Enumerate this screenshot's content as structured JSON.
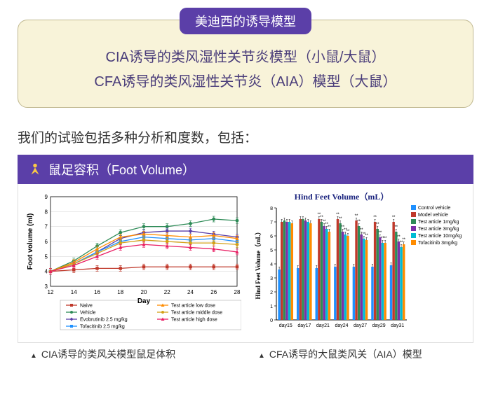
{
  "header": {
    "tag": "美迪西的诱导模型",
    "lines": [
      "CIA诱导的类风湿性关节炎模型（小鼠/大鼠）",
      "CFA诱导的类风湿性关节炎（AIA）模型（大鼠）"
    ]
  },
  "intro": "我们的试验包括多种分析和度数，包括：",
  "section_title": "鼠足容积（Foot Volume）",
  "captions": [
    "CIA诱导的类风关模型鼠足体积",
    "CFA诱导的大鼠类风关（AIA）模型"
  ],
  "chart1": {
    "type": "line",
    "x_days": [
      12,
      14,
      16,
      18,
      20,
      22,
      24,
      26,
      28
    ],
    "ylim": [
      3,
      9
    ],
    "ytick_step": 1,
    "xlabel": "Day",
    "ylabel": "Foot volume (ml)",
    "xlabel_fontsize": 10,
    "ylabel_fontsize": 10,
    "tick_fontsize": 8,
    "legend_fontsize": 7,
    "background_color": "#ffffff",
    "grid_color": "#d0d0d0",
    "series": [
      {
        "name": "Naive",
        "color": "#c0392b",
        "marker": "square",
        "values": [
          4.0,
          4.1,
          4.2,
          4.2,
          4.3,
          4.3,
          4.3,
          4.3,
          4.3
        ]
      },
      {
        "name": "Vehicle",
        "color": "#2e8b57",
        "marker": "circle",
        "values": [
          4.0,
          4.7,
          5.7,
          6.6,
          7.0,
          7.0,
          7.2,
          7.5,
          7.4
        ]
      },
      {
        "name": "Evobrutinib 2.5 mg/kg",
        "color": "#5b3fa8",
        "marker": "diamond",
        "values": [
          4.0,
          4.5,
          5.3,
          6.2,
          6.6,
          6.7,
          6.7,
          6.5,
          6.3
        ]
      },
      {
        "name": "Tofacitinib 2.5 mg/kg",
        "color": "#1e90ff",
        "marker": "square",
        "values": [
          4.0,
          4.5,
          5.3,
          6.0,
          6.3,
          6.2,
          6.1,
          6.2,
          6.0
        ]
      },
      {
        "name": "Test article low dose",
        "color": "#ff8c00",
        "marker": "triangle",
        "values": [
          4.0,
          4.6,
          5.5,
          6.3,
          6.5,
          6.4,
          6.3,
          6.4,
          6.2
        ]
      },
      {
        "name": "Test article middle dose",
        "color": "#d4a017",
        "marker": "circle",
        "values": [
          4.0,
          4.5,
          5.2,
          5.9,
          6.1,
          6.0,
          5.9,
          5.9,
          5.8
        ]
      },
      {
        "name": "Test article high dose",
        "color": "#e91e63",
        "marker": "triangle",
        "values": [
          4.0,
          4.4,
          5.0,
          5.6,
          5.8,
          5.7,
          5.6,
          5.5,
          5.3
        ]
      }
    ]
  },
  "chart2": {
    "type": "bar",
    "title": "Hind Feet Volume（mL）",
    "title_fontsize": 12,
    "title_color": "#1a237e",
    "ylabel": "Hind Feet Volume（mL）",
    "ylabel_fontsize": 9,
    "tick_fontsize": 7,
    "legend_fontsize": 7,
    "ylim": [
      0,
      8
    ],
    "ytick_step": 1,
    "days": [
      "day15",
      "day17",
      "day21",
      "day24",
      "day27",
      "day29",
      "day31"
    ],
    "legend": [
      {
        "name": "Control vehicle",
        "color": "#1e90ff"
      },
      {
        "name": "Model vehicle",
        "color": "#c0392b"
      },
      {
        "name": "Test article 1mg/kg",
        "color": "#2e8b57"
      },
      {
        "name": "Test article 3mg/kg",
        "color": "#7b2fa8"
      },
      {
        "name": "Test article 10mg/kg",
        "color": "#00bcd4"
      },
      {
        "name": "Tofacitinib 3mg/kg",
        "color": "#ff8c00"
      }
    ],
    "series": [
      {
        "color": "#1e90ff",
        "values": [
          3.6,
          3.7,
          3.7,
          3.8,
          3.8,
          3.8,
          3.9
        ]
      },
      {
        "color": "#c0392b",
        "values": [
          7.0,
          7.2,
          7.2,
          7.2,
          7.1,
          7.0,
          7.0
        ]
      },
      {
        "color": "#2e8b57",
        "values": [
          7.1,
          7.2,
          7.0,
          6.9,
          6.7,
          6.5,
          6.3
        ]
      },
      {
        "color": "#7b2fa8",
        "values": [
          7.0,
          7.1,
          6.7,
          6.3,
          6.1,
          5.9,
          5.6
        ]
      },
      {
        "color": "#00bcd4",
        "values": [
          7.0,
          7.0,
          6.5,
          6.1,
          5.8,
          5.5,
          5.2
        ]
      },
      {
        "color": "#ff8c00",
        "values": [
          6.9,
          6.9,
          6.3,
          6.0,
          5.7,
          5.5,
          5.4
        ]
      }
    ],
    "background_color": "#ffffff",
    "grid_color": "#888888"
  }
}
